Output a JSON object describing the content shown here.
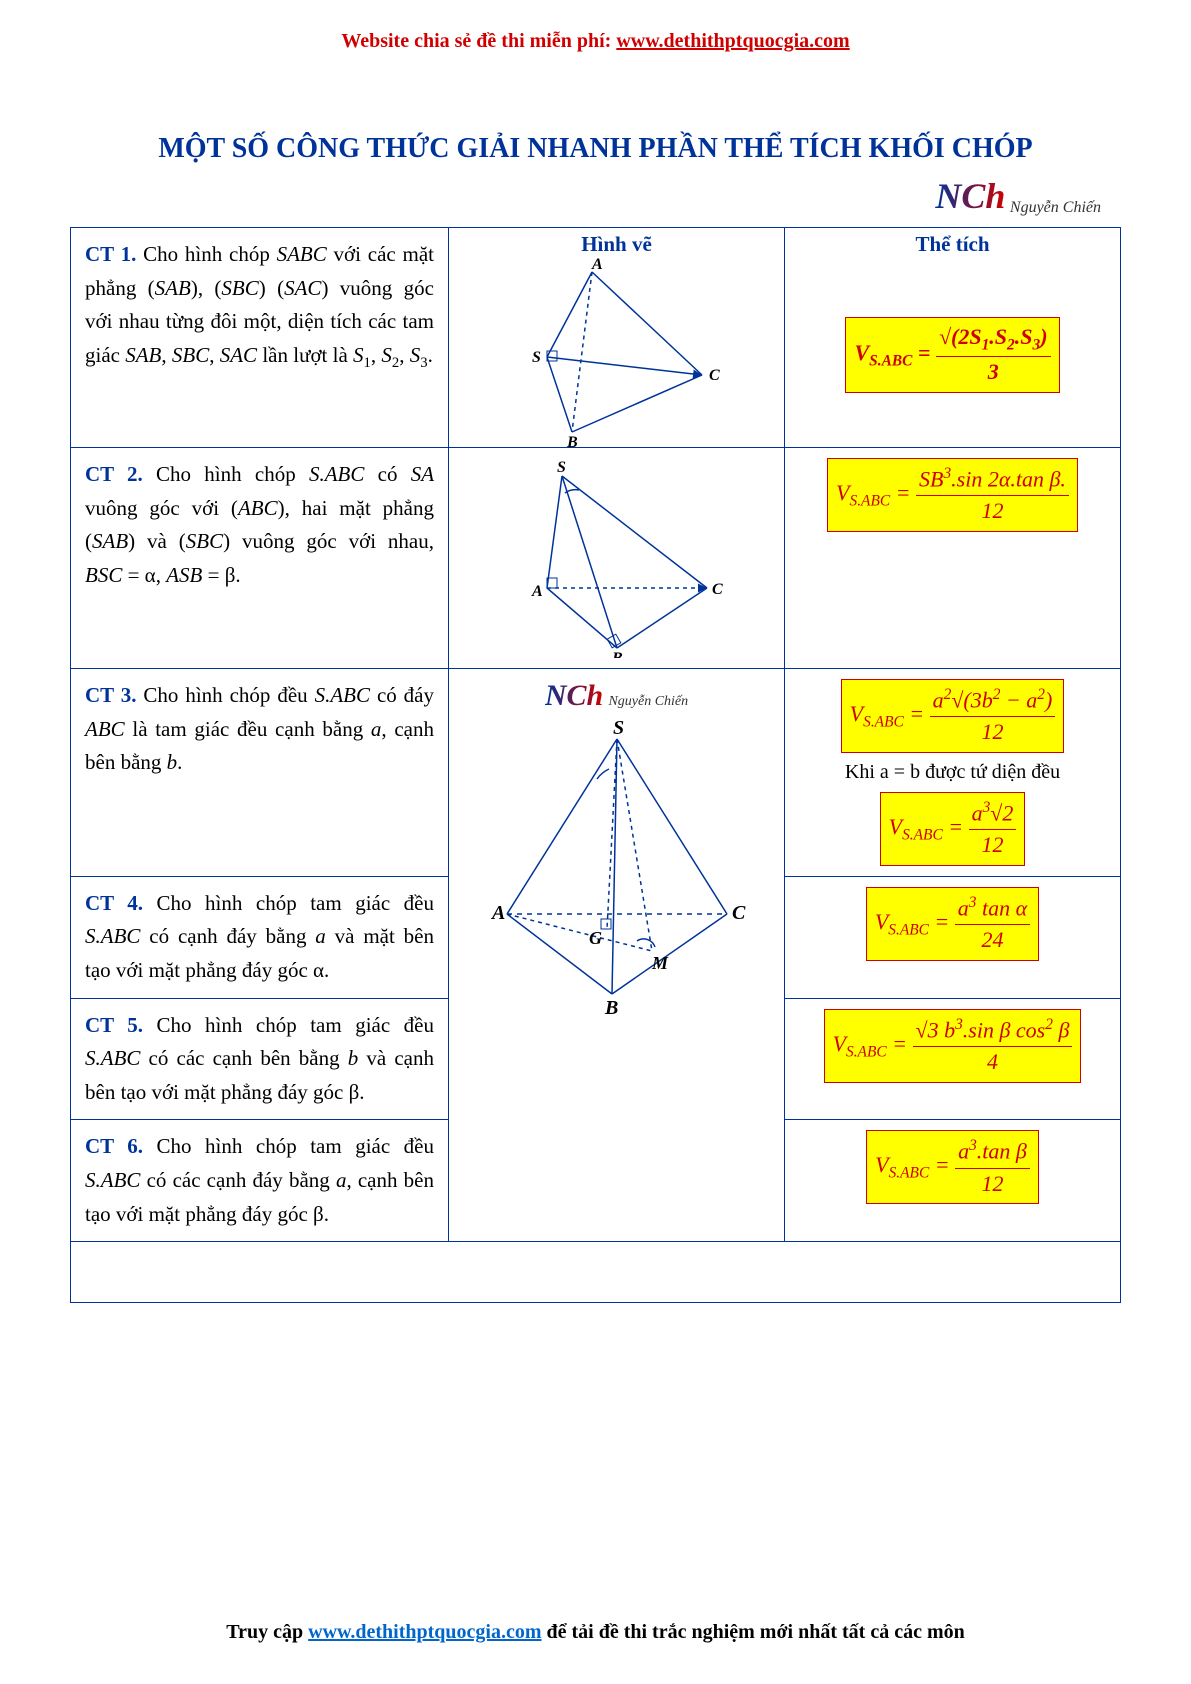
{
  "colors": {
    "title_blue": "#003399",
    "red": "#d00000",
    "highlight_bg": "#ffff00",
    "highlight_border": "#d00000",
    "link_blue": "#0066cc",
    "svg_stroke": "#003399"
  },
  "header": {
    "prefix": "Website chia sẻ đề thi miễn phí: ",
    "link_text": "www.dethithptquocgia.com"
  },
  "title": "MỘT SỐ CÔNG THỨC GIẢI NHANH PHẦN THỂ TÍCH KHỐI CHÓP",
  "author": {
    "logo": "NCh",
    "name": "Nguyễn Chiến"
  },
  "table_headers": {
    "figure": "Hình vẽ",
    "volume": "Thể tích"
  },
  "rows": [
    {
      "label": "CT 1.",
      "desc_html": "Cho hình chóp <i>SABC</i> với các mặt phẳng (<i>SAB</i>), (<i>SBC</i>) (<i>SAC</i>) vuông góc với nhau từng đôi một, diện tích các tam giác <i>SAB</i>, <i>SBC</i>, <i>SAC</i> lần lượt là <i>S</i><sub>1</sub>, <i>S</i><sub>2</sub>, <i>S</i><sub>3</sub>.",
      "formula_html": "<span>V<sub>S.ABC</sub> = </span><span class='frac'><span class='num'>√(2S<sub>1</sub>.S<sub>2</sub>.S<sub>3</sub>)</span><span class='den'>3</span></span>"
    },
    {
      "label": "CT 2.",
      "desc_html": "Cho hình chóp <i>S.ABC</i> có <i>SA</i> vuông góc với (<i>ABC</i>), hai mặt phẳng (<i>SAB</i>) và (<i>SBC</i>) vuông góc với nhau, <i>BSC</i> = α, <i>ASB</i> = β.",
      "formula_html": "<span>V<sub>S.ABC</sub> = </span><span class='frac'><span class='num'>SB<sup>3</sup>.sin 2α.tan β.</span><span class='den'>12</span></span>"
    },
    {
      "label": "CT 3.",
      "desc_html": "Cho hình chóp đều <i>S.ABC</i> có đáy <i>ABC</i> là tam giác đều cạnh bằng <i>a</i>, cạnh bên bằng <i>b</i>.",
      "formula_html": "<span>V<sub>S.ABC</sub> = </span><span class='frac'><span class='num'>a<sup>2</sup>√(3b<sup>2</sup> − a<sup>2</sup>)</span><span class='den'>12</span></span>",
      "extra_text": "Khi a = b được tứ diện đều",
      "extra_formula_html": "<span>V<sub>S.ABC</sub> = </span><span class='frac'><span class='num'>a<sup>3</sup>√2</span><span class='den'>12</span></span>"
    },
    {
      "label": "CT 4.",
      "desc_html": "Cho hình chóp tam giác đều <i>S.ABC</i> có cạnh đáy bằng <i>a</i> và mặt bên tạo với mặt phẳng đáy góc α.",
      "formula_html": "<span>V<sub>S.ABC</sub> = </span><span class='frac'><span class='num'>a<sup>3</sup> tan α</span><span class='den'>24</span></span>"
    },
    {
      "label": "CT 5.",
      "desc_html": "Cho hình chóp tam giác đều <i>S.ABC</i> có các cạnh bên bằng <i>b</i> và cạnh bên tạo với mặt phẳng đáy góc β.",
      "formula_html": "<span>V<sub>S.ABC</sub> = </span><span class='frac'><span class='num'>√3 b<sup>3</sup>.sin β cos<sup>2</sup> β</span><span class='den'>4</span></span>"
    },
    {
      "label": "CT 6.",
      "desc_html": "Cho hình chóp tam giác đều <i>S.ABC</i> có các cạnh đáy bằng <i>a</i>, cạnh bên tạo với mặt phẳng đáy góc β.",
      "formula_html": "<span>V<sub>S.ABC</sub> = </span><span class='frac'><span class='num'>a<sup>3</sup>.tan β</span><span class='den'>12</span></span>"
    }
  ],
  "footer": {
    "prefix": "Truy cập ",
    "link_text": "www.dethithptquocgia.com",
    "suffix": " để tải đề thi trắc nghiệm mới nhất tất cả các môn"
  }
}
